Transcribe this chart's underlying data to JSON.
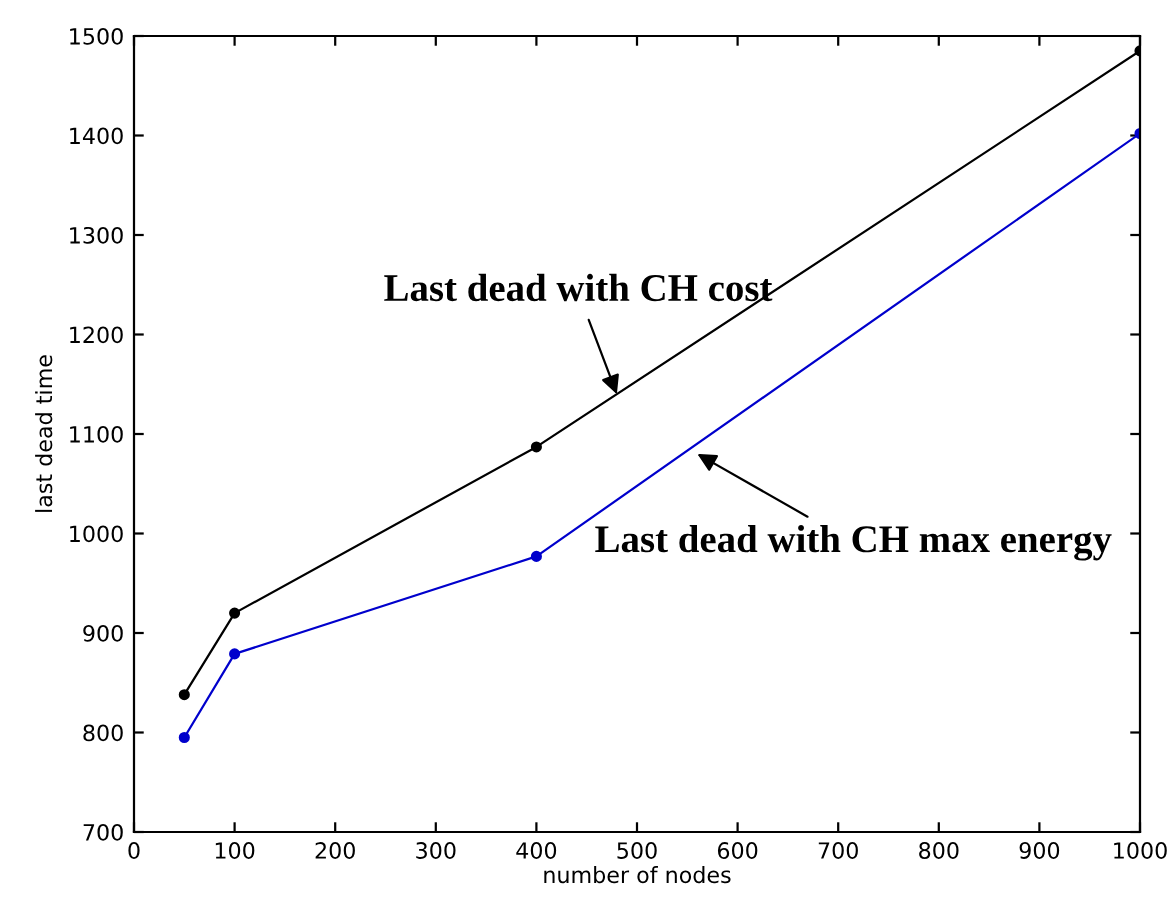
{
  "chart_data": {
    "type": "line",
    "xlabel": "number of nodes",
    "ylabel": "last dead time",
    "x": [
      50,
      100,
      400,
      1000
    ],
    "series": [
      {
        "color": "#000000",
        "values": [
          838,
          920,
          1087,
          1485
        ]
      },
      {
        "color": "#0000cc",
        "values": [
          795,
          879,
          977,
          1402
        ]
      }
    ],
    "xlim": [
      0,
      1000
    ],
    "ylim": [
      700,
      1500
    ],
    "xticks": [
      0,
      100,
      200,
      300,
      400,
      500,
      600,
      700,
      800,
      900,
      1000
    ],
    "yticks": [
      700,
      800,
      900,
      1000,
      1100,
      1200,
      1300,
      1400,
      1500
    ],
    "annotations": [
      {
        "text": "Last dead with CH cost",
        "x": 480,
        "y": 1140
      },
      {
        "text": "Last dead with CH max energy",
        "x": 560,
        "y": 1080
      }
    ],
    "marker": "circle",
    "line_style": "solid",
    "grid": false,
    "legend": false
  }
}
